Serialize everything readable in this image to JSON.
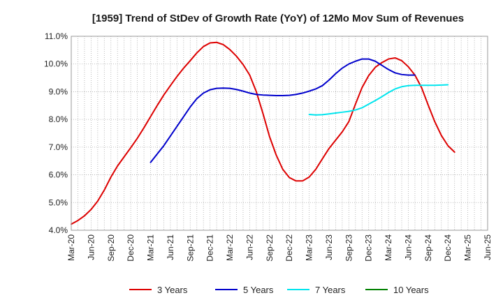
{
  "chart_data": {
    "type": "line",
    "title": "[1959]  Trend of StDev of Growth Rate (YoY) of 12Mo Mov Sum of Revenues",
    "xlabel": "",
    "ylabel": "",
    "ylim": [
      4.0,
      11.0
    ],
    "yticks": [
      "4.0%",
      "5.0%",
      "6.0%",
      "7.0%",
      "8.0%",
      "9.0%",
      "10.0%",
      "11.0%"
    ],
    "x_start": "Mar-20",
    "x_end": "Jun-25",
    "x_ticks": [
      "Mar-20",
      "Jun-20",
      "Sep-20",
      "Dec-20",
      "Mar-21",
      "Jun-21",
      "Sep-21",
      "Dec-21",
      "Mar-22",
      "Jun-22",
      "Sep-22",
      "Dec-22",
      "Mar-23",
      "Jun-23",
      "Sep-23",
      "Dec-23",
      "Mar-24",
      "Jun-24",
      "Sep-24",
      "Dec-24",
      "Mar-25",
      "Jun-25"
    ],
    "grid": true,
    "legend_position": "bottom",
    "series": [
      {
        "name": "3 Years",
        "color": "#dd0000",
        "start_month_index": 0,
        "values": [
          4.22,
          4.35,
          4.52,
          4.75,
          5.05,
          5.45,
          5.92,
          6.32,
          6.65,
          6.98,
          7.32,
          7.7,
          8.1,
          8.5,
          8.88,
          9.22,
          9.55,
          9.85,
          10.12,
          10.4,
          10.63,
          10.76,
          10.78,
          10.7,
          10.52,
          10.28,
          9.98,
          9.6,
          9.0,
          8.22,
          7.38,
          6.72,
          6.2,
          5.9,
          5.78,
          5.78,
          5.92,
          6.2,
          6.58,
          6.95,
          7.25,
          7.55,
          7.92,
          8.55,
          9.15,
          9.58,
          9.88,
          10.05,
          10.18,
          10.22,
          10.12,
          9.9,
          9.6,
          9.15,
          8.52,
          7.92,
          7.42,
          7.05,
          6.82
        ]
      },
      {
        "name": "5 Years",
        "color": "#0000cc",
        "start_month_index": 12,
        "values": [
          6.45,
          6.75,
          7.05,
          7.4,
          7.75,
          8.1,
          8.45,
          8.75,
          8.95,
          9.07,
          9.12,
          9.13,
          9.12,
          9.08,
          9.02,
          8.95,
          8.9,
          8.88,
          8.87,
          8.86,
          8.86,
          8.87,
          8.9,
          8.95,
          9.02,
          9.1,
          9.22,
          9.42,
          9.65,
          9.85,
          10.0,
          10.1,
          10.18,
          10.18,
          10.1,
          9.95,
          9.8,
          9.68,
          9.62,
          9.6,
          9.6
        ]
      },
      {
        "name": "7 Years",
        "color": "#00e5ee",
        "start_month_index": 36,
        "values": [
          8.18,
          8.16,
          8.17,
          8.2,
          8.23,
          8.26,
          8.29,
          8.34,
          8.42,
          8.55,
          8.68,
          8.82,
          8.97,
          9.1,
          9.18,
          9.22,
          9.23,
          9.23,
          9.23,
          9.23,
          9.24,
          9.25
        ]
      },
      {
        "name": "10 Years",
        "color": "#008000",
        "start_month_index": 0,
        "values": []
      }
    ]
  }
}
